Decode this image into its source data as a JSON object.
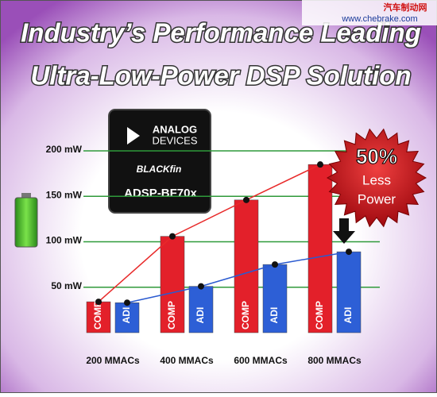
{
  "chart_data": {
    "type": "bar",
    "title": "Industry’s Performance Leading",
    "subtitle": "Ultra-Low-Power DSP Solution",
    "categories": [
      "200 MMACs",
      "400 MMACs",
      "600 MMACs",
      "800 MMACs"
    ],
    "series": [
      {
        "name": "COMP",
        "color": "#e3202a",
        "line_color": "#e82a2a",
        "values": [
          34,
          106,
          146,
          185
        ]
      },
      {
        "name": "ADI",
        "color": "#2d5fd6",
        "line_color": "#2a5ad0",
        "values": [
          33,
          51,
          75,
          89
        ]
      }
    ],
    "ylim": [
      0,
      200
    ],
    "yticks": [
      {
        "value": 50,
        "label": "50 mW"
      },
      {
        "value": 100,
        "label": "100 mW"
      },
      {
        "value": 150,
        "label": "150 mW"
      },
      {
        "value": 200,
        "label": "200 mW"
      }
    ],
    "grid": true,
    "annotation": {
      "value": 50,
      "value_label": "50%",
      "text": [
        "Less",
        "Power"
      ]
    }
  },
  "chip": [
    "ANALOG",
    "DEVICES",
    "BLACKfin",
    "ADSP-BF70x"
  ],
  "watermark": [
    "汽车制动网",
    "www.chebrake.com"
  ]
}
